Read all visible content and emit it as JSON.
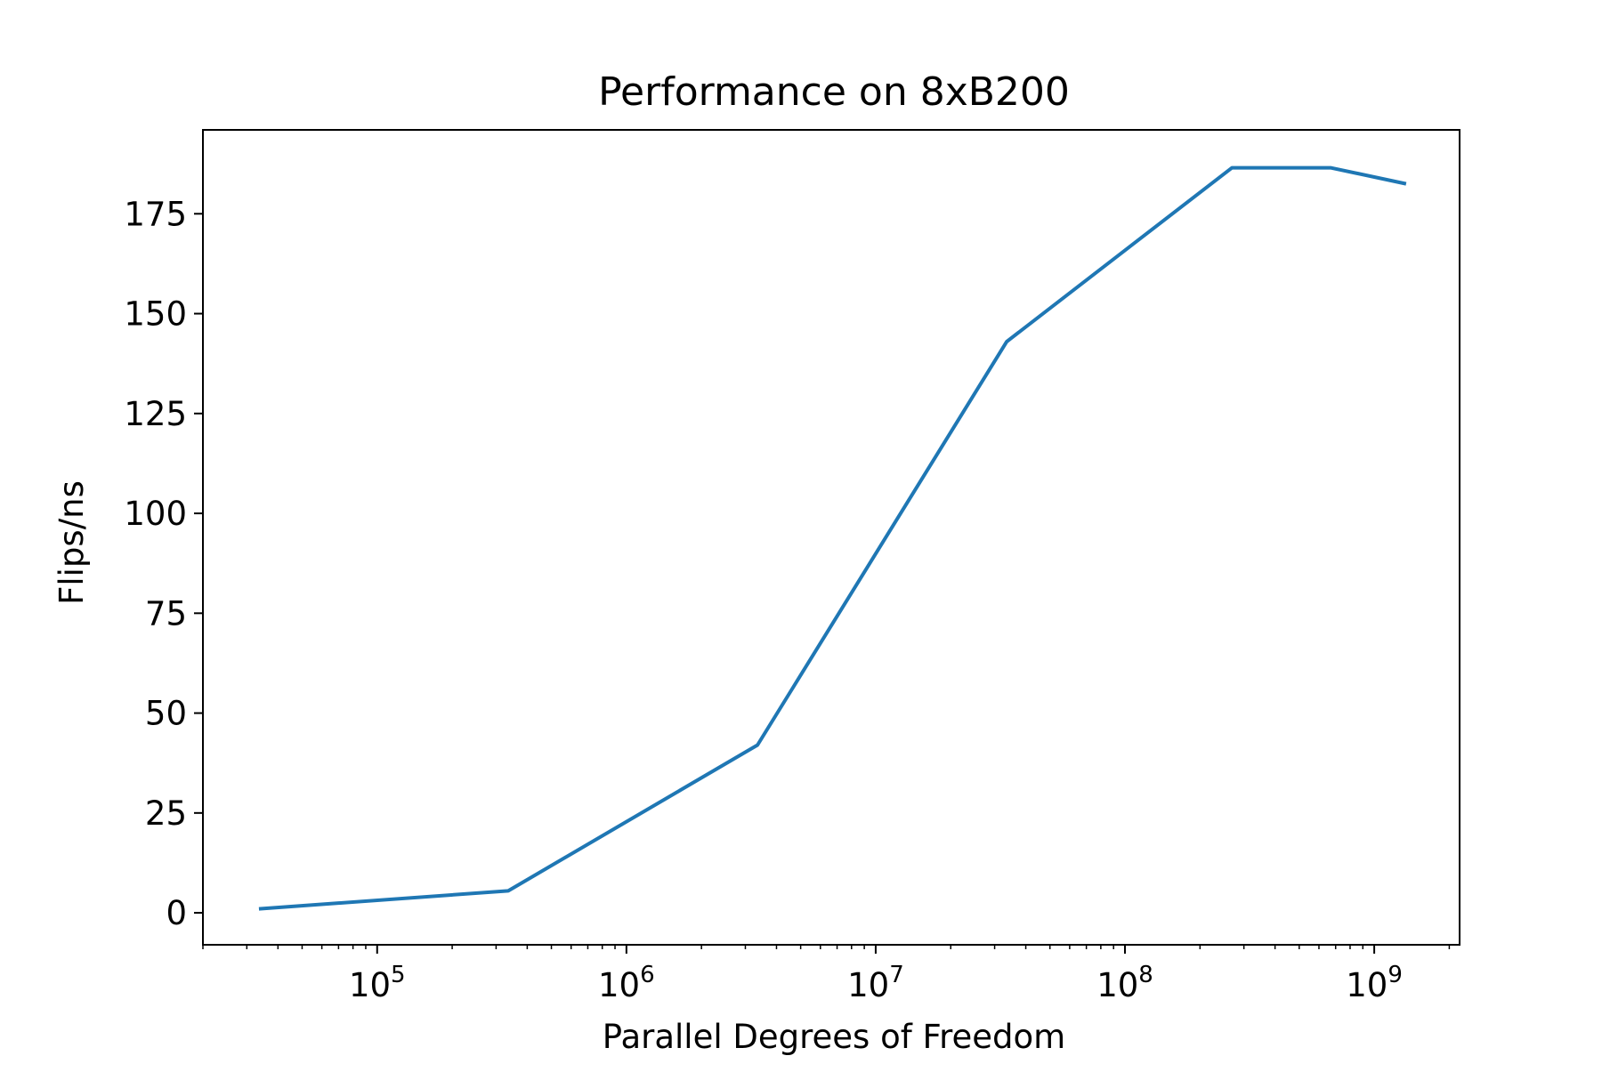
{
  "chart_data": {
    "type": "line",
    "title": "Performance on 8xB200",
    "xlabel": "Parallel Degrees of Freedom",
    "ylabel": "Flips/ns",
    "x_scale": "log",
    "xlim": [
      20000,
      2200000000
    ],
    "ylim": [
      -8,
      196
    ],
    "grid": false,
    "series": [
      {
        "color": "#1f77b4",
        "x": [
          33554,
          335544,
          3355443,
          33554432,
          268435456,
          671088640,
          1342177280
        ],
        "y": [
          1,
          5.5,
          42,
          143,
          186.5,
          186.5,
          182.5
        ]
      }
    ],
    "x_ticks": [
      {
        "value": 100000,
        "base": "10",
        "exp": "5"
      },
      {
        "value": 1000000,
        "base": "10",
        "exp": "6"
      },
      {
        "value": 10000000,
        "base": "10",
        "exp": "7"
      },
      {
        "value": 100000000,
        "base": "10",
        "exp": "8"
      },
      {
        "value": 1000000000,
        "base": "10",
        "exp": "9"
      }
    ],
    "y_ticks": [
      {
        "value": 0,
        "label": "0"
      },
      {
        "value": 25,
        "label": "25"
      },
      {
        "value": 50,
        "label": "50"
      },
      {
        "value": 75,
        "label": "75"
      },
      {
        "value": 100,
        "label": "100"
      },
      {
        "value": 125,
        "label": "125"
      },
      {
        "value": 150,
        "label": "150"
      },
      {
        "value": 175,
        "label": "175"
      }
    ]
  }
}
